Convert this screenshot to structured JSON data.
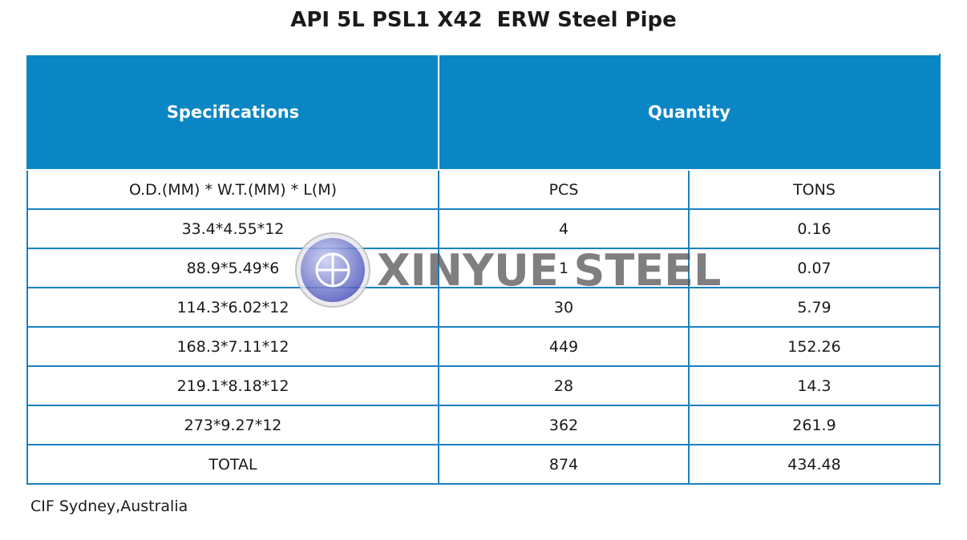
{
  "title": "API 5L PSL1 X42  ERW Steel Pipe",
  "table": {
    "headers": [
      "Specifications",
      "Quantity"
    ],
    "subheaders": [
      "O.D.(MM) * W.T.(MM) * L(M)",
      "PCS",
      "TONS"
    ],
    "rows": [
      [
        "33.4*4.55*12",
        4,
        0.16
      ],
      [
        "88.9*5.49*6",
        1,
        0.07
      ],
      [
        "114.3*6.02*12",
        30,
        5.79
      ],
      [
        "168.3*7.11*12",
        449,
        152.26
      ],
      [
        "219.1*8.18*12",
        28,
        14.3
      ],
      [
        "273*9.27*12",
        362,
        261.9
      ],
      [
        "TOTAL",
        874,
        434.48
      ]
    ]
  },
  "footer": "CIF Sydney,Australia",
  "watermark": "XINYUE STEEL"
}
